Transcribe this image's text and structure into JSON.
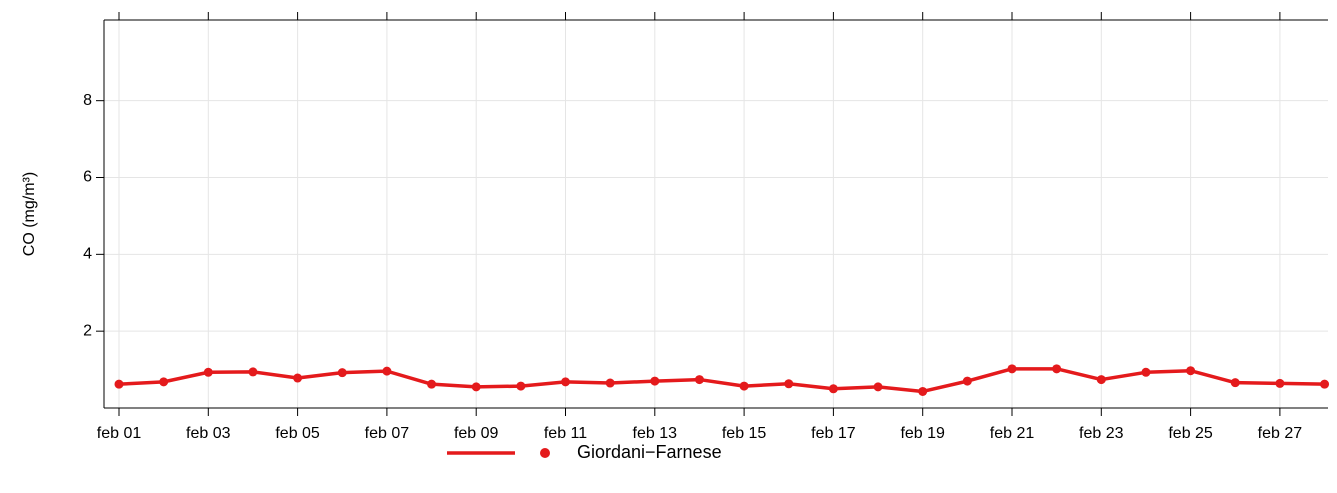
{
  "chart_data": {
    "type": "line",
    "y_label": "CO (mg/m³)",
    "categories": [
      "feb 01",
      null,
      "feb 03",
      null,
      "feb 05",
      null,
      "feb 07",
      null,
      "feb 09",
      null,
      "feb 11",
      null,
      "feb 13",
      null,
      "feb 15",
      null,
      "feb 17",
      null,
      "feb 19",
      null,
      "feb 21",
      null,
      "feb 23",
      null,
      "feb 25",
      null,
      "feb 27",
      null
    ],
    "series": [
      {
        "name": "Giordani−Farnese",
        "color": "#e41a1c",
        "values": [
          0.62,
          0.68,
          0.93,
          0.94,
          0.78,
          0.92,
          0.96,
          0.62,
          0.55,
          0.57,
          0.68,
          0.65,
          0.7,
          0.74,
          0.57,
          0.63,
          0.5,
          0.55,
          0.43,
          0.7,
          1.02,
          1.02,
          0.74,
          0.93,
          0.97,
          0.66,
          0.64,
          0.62
        ]
      }
    ],
    "ylim": [
      0,
      10.1
    ],
    "yticks": [
      2,
      4,
      6,
      8
    ],
    "grid": true,
    "legend": "bottom"
  }
}
